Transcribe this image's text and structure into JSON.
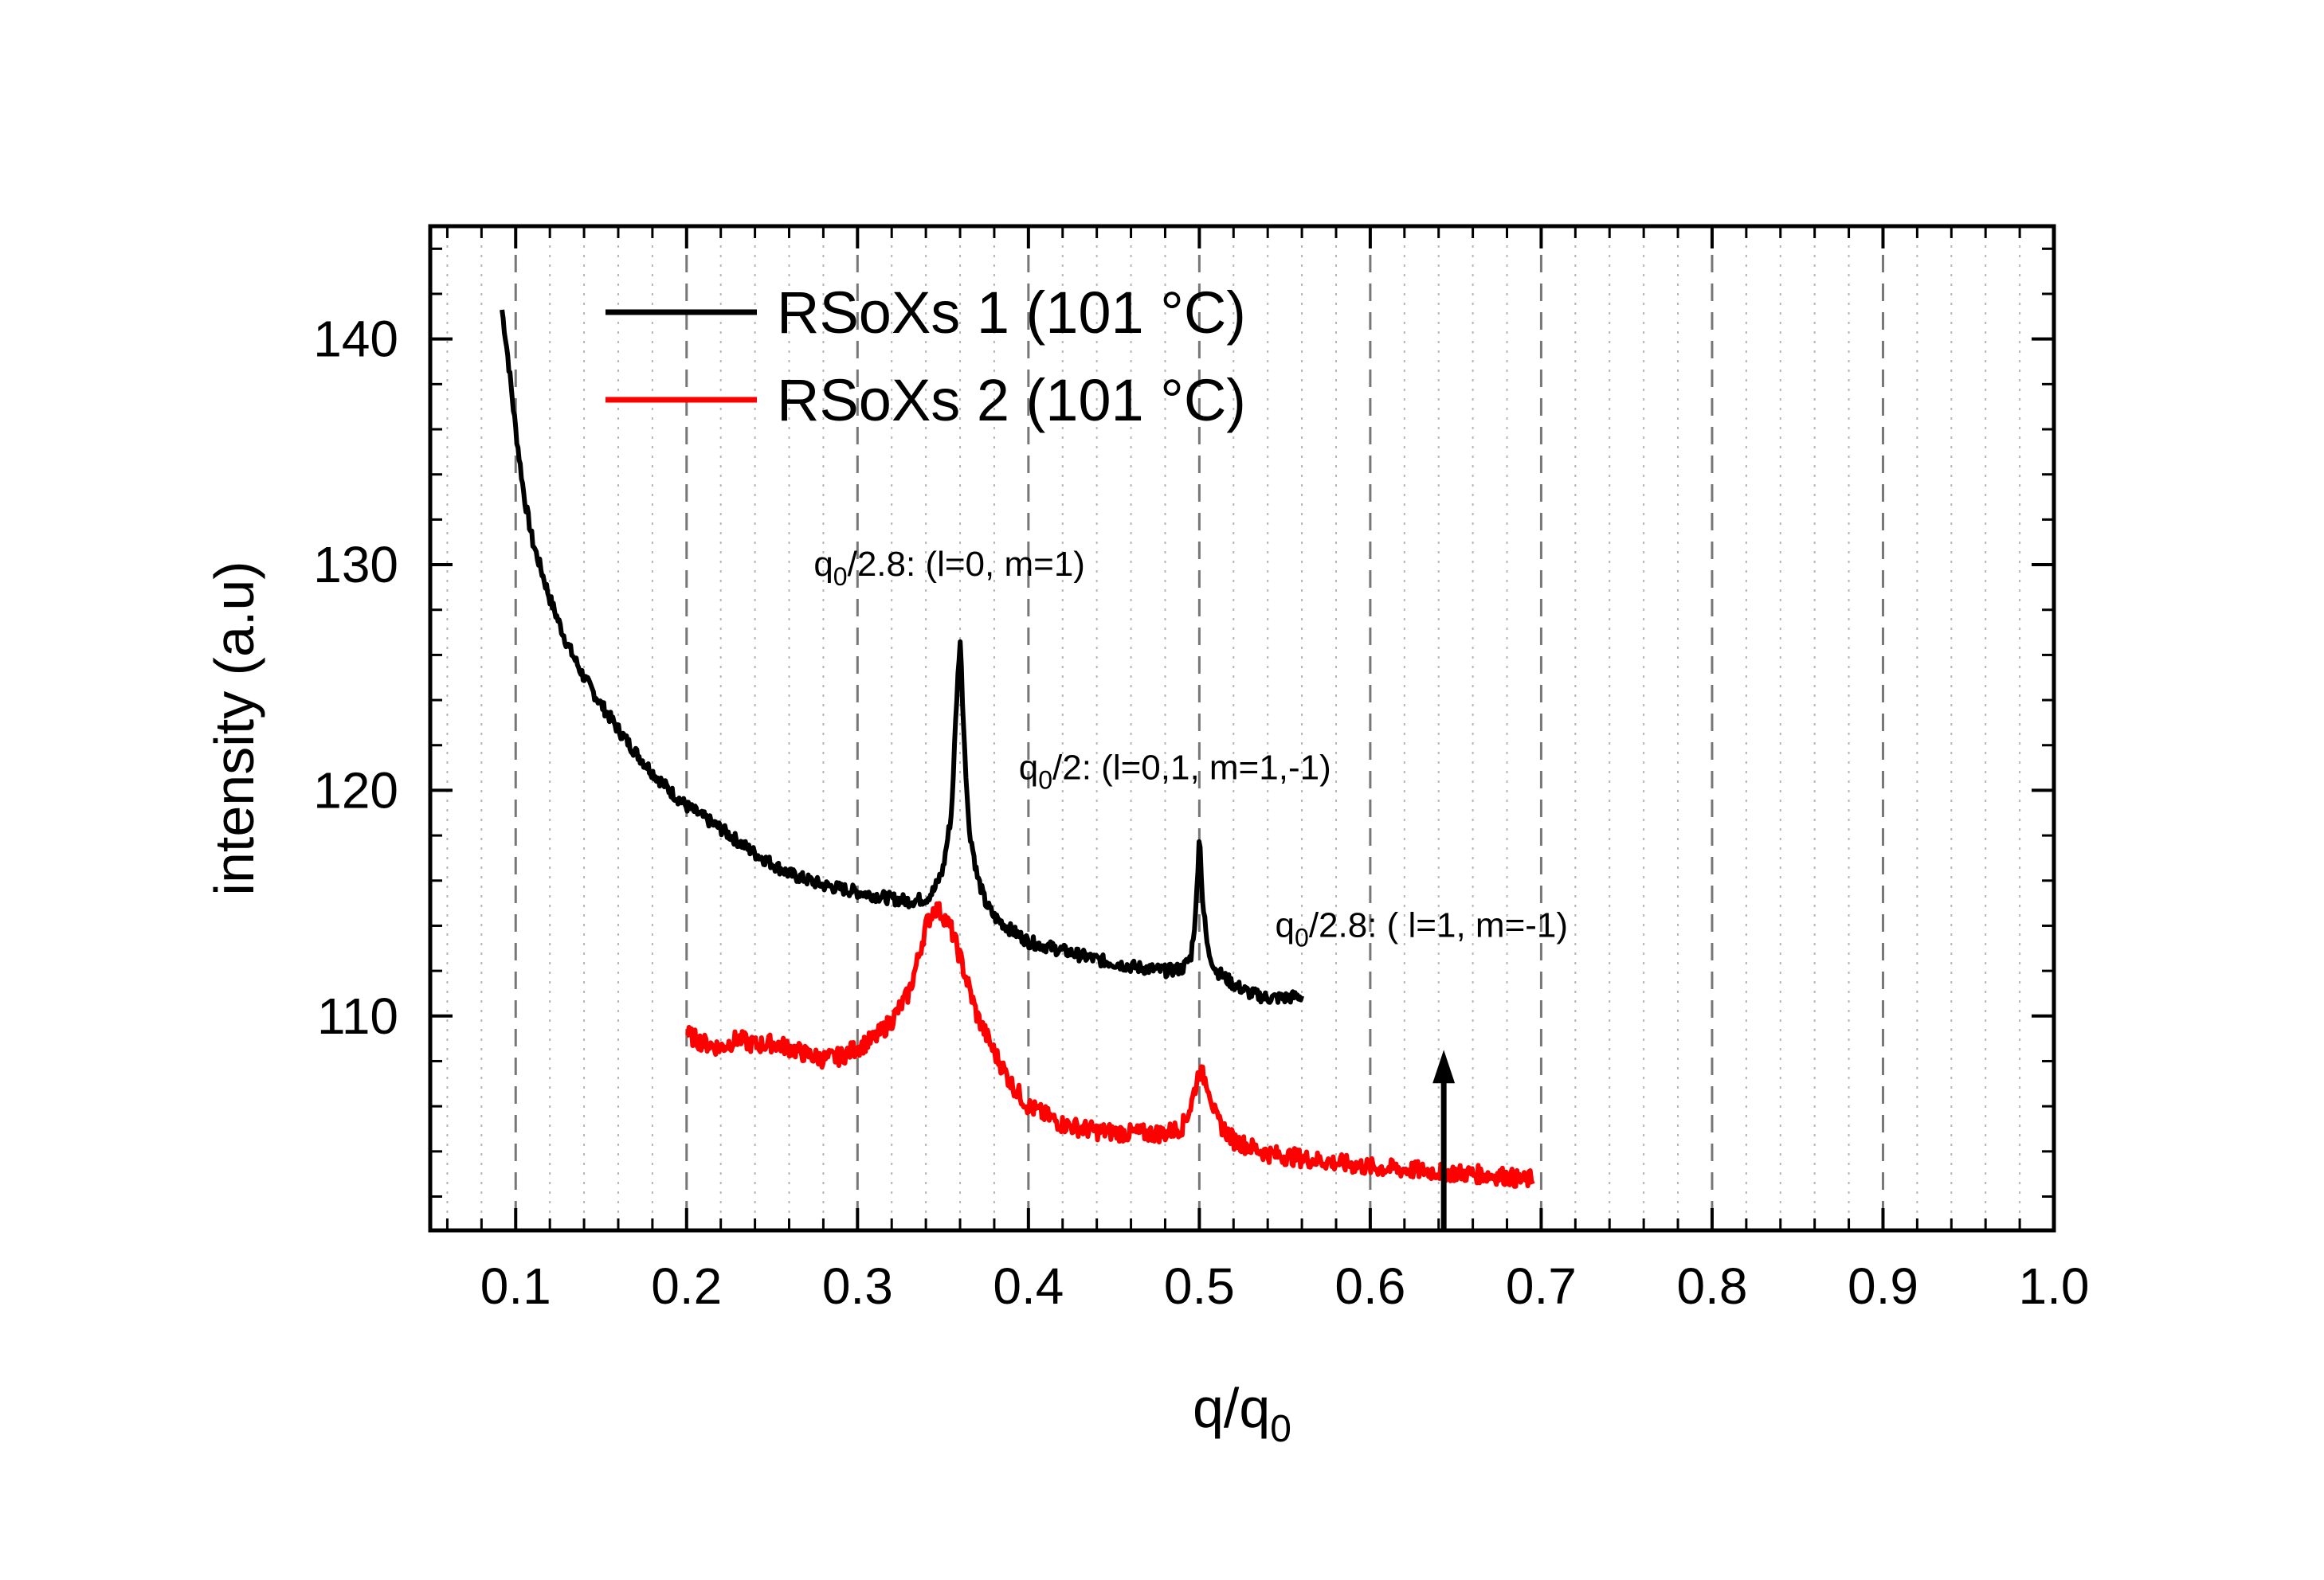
{
  "chart_data": {
    "type": "line",
    "title": "",
    "xlabel_base": "q/q",
    "xlabel_sub": "0",
    "ylabel": "intensity (a.u)",
    "xlim": [
      0.05,
      1.0
    ],
    "ylim": [
      100.5,
      145
    ],
    "xticks": [
      0.1,
      0.2,
      0.3,
      0.4,
      0.5,
      0.6,
      0.7,
      0.8,
      0.9,
      1.0
    ],
    "xtick_labels": [
      "0.1",
      "0.2",
      "0.3",
      "0.4",
      "0.5",
      "0.6",
      "0.7",
      "0.8",
      "0.9",
      "1.0"
    ],
    "yticks": [
      110,
      120,
      130,
      140
    ],
    "ytick_labels": [
      "110",
      "120",
      "130",
      "140"
    ],
    "grid": {
      "major_x": "dashed",
      "minor_x": "dotted",
      "y": false
    },
    "legend_position": "top-left",
    "series": [
      {
        "name": "RSoXs 1 (101 °C)",
        "color": "#000000",
        "x": [
          0.092,
          0.095,
          0.1,
          0.105,
          0.11,
          0.12,
          0.13,
          0.14,
          0.15,
          0.16,
          0.17,
          0.18,
          0.19,
          0.2,
          0.22,
          0.24,
          0.26,
          0.28,
          0.3,
          0.32,
          0.33,
          0.34,
          0.345,
          0.35,
          0.355,
          0.358,
          0.36,
          0.362,
          0.365,
          0.37,
          0.375,
          0.38,
          0.39,
          0.4,
          0.42,
          0.44,
          0.46,
          0.48,
          0.49,
          0.495,
          0.498,
          0.5,
          0.502,
          0.505,
          0.51,
          0.52,
          0.53,
          0.54,
          0.55,
          0.56
        ],
        "y": [
          141.3,
          139.5,
          136.0,
          133.0,
          131.0,
          128.5,
          126.5,
          125.0,
          123.8,
          122.7,
          121.7,
          120.8,
          120.0,
          119.3,
          118.3,
          117.2,
          116.3,
          115.8,
          115.5,
          115.2,
          115.1,
          115.2,
          115.6,
          116.5,
          119.0,
          124.0,
          126.8,
          123.0,
          118.5,
          116.2,
          115.0,
          114.4,
          113.8,
          113.3,
          112.9,
          112.5,
          112.2,
          112.0,
          112.1,
          112.6,
          114.6,
          118.2,
          115.0,
          112.9,
          112.0,
          111.4,
          111.0,
          110.8,
          110.8,
          110.9
        ]
      },
      {
        "name": "RSoXs 2 (101 °C)",
        "color": "#ff0000",
        "x": [
          0.2,
          0.21,
          0.22,
          0.23,
          0.24,
          0.25,
          0.26,
          0.27,
          0.28,
          0.29,
          0.3,
          0.31,
          0.32,
          0.33,
          0.335,
          0.34,
          0.345,
          0.35,
          0.355,
          0.36,
          0.37,
          0.38,
          0.39,
          0.4,
          0.42,
          0.44,
          0.46,
          0.48,
          0.49,
          0.495,
          0.5,
          0.505,
          0.51,
          0.52,
          0.54,
          0.56,
          0.58,
          0.6,
          0.62,
          0.64,
          0.66,
          0.68,
          0.69,
          0.695
        ],
        "y": [
          109.2,
          108.8,
          108.6,
          109.0,
          108.7,
          108.8,
          108.6,
          108.3,
          108.1,
          108.2,
          108.6,
          109.0,
          109.8,
          111.0,
          112.4,
          114.0,
          114.8,
          114.5,
          113.8,
          112.6,
          110.0,
          108.4,
          107.0,
          106.0,
          105.2,
          104.9,
          104.8,
          104.8,
          105.1,
          106.0,
          107.6,
          107.0,
          105.4,
          104.5,
          103.9,
          103.7,
          103.5,
          103.3,
          103.2,
          103.1,
          103.0,
          102.9,
          102.7,
          102.8
        ]
      }
    ],
    "annotations": [
      {
        "base": "q",
        "sub": "0",
        "text": "/2.8: (l=0, m=1)",
        "x": 0.3,
        "y": 129.5
      },
      {
        "base": "q",
        "sub": "0",
        "text": "/2: (l=0,1, m=1,-1)",
        "x": 0.42,
        "y": 120.5
      },
      {
        "base": "q",
        "sub": "0",
        "text": "/2.8: ( l=1, m=-1)",
        "x": 0.57,
        "y": 113.5
      }
    ],
    "arrow": {
      "x": 0.643,
      "y_from": 100.5,
      "y_to": 108.5
    }
  }
}
